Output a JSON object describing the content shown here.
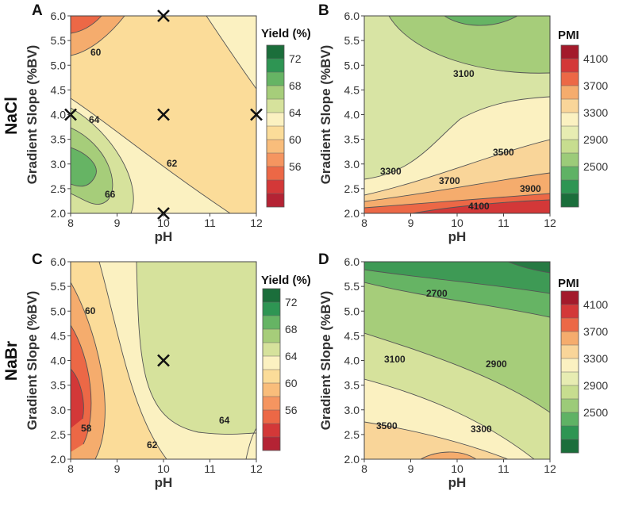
{
  "row_labels": [
    "NaCl",
    "NaBr"
  ],
  "chart_data": [
    {
      "panel": "A",
      "type": "heatmap",
      "subtype": "contour",
      "xlabel": "pH",
      "ylabel": "Gradient Slope (%BV)",
      "xlim": [
        8,
        12
      ],
      "ylim": [
        2.0,
        6.0
      ],
      "xticks": [
        "8",
        "9",
        "10",
        "11",
        "12"
      ],
      "yticks": [
        "2.0",
        "2.5",
        "3.0",
        "3.5",
        "4.0",
        "4.5",
        "5.0",
        "5.5",
        "6.0"
      ],
      "colorbar_title": "Yield (%)",
      "colorbar_ticks": [
        "72",
        "68",
        "64",
        "60",
        "56"
      ],
      "contour_labels": [
        "60",
        "64",
        "62",
        "66"
      ],
      "design_points": [
        {
          "x": 10,
          "y": 6
        },
        {
          "x": 8,
          "y": 4
        },
        {
          "x": 10,
          "y": 4
        },
        {
          "x": 12,
          "y": 4
        },
        {
          "x": 10,
          "y": 2
        }
      ]
    },
    {
      "panel": "B",
      "type": "heatmap",
      "subtype": "contour",
      "xlabel": "pH",
      "ylabel": "Gradient Slope (%BV)",
      "xlim": [
        8,
        12
      ],
      "ylim": [
        2.0,
        6.0
      ],
      "xticks": [
        "8",
        "9",
        "10",
        "11",
        "12"
      ],
      "yticks": [
        "2.0",
        "2.5",
        "3.0",
        "3.5",
        "4.0",
        "4.5",
        "5.0",
        "5.5",
        "6.0"
      ],
      "colorbar_title": "PMI",
      "colorbar_ticks": [
        "4100",
        "3700",
        "3300",
        "2900",
        "2500"
      ],
      "contour_labels": [
        "3100",
        "3500",
        "3300",
        "3700",
        "3900",
        "4100"
      ],
      "design_points": []
    },
    {
      "panel": "C",
      "type": "heatmap",
      "subtype": "contour",
      "xlabel": "pH",
      "ylabel": "Gradient Slope (%BV)",
      "xlim": [
        8,
        12
      ],
      "ylim": [
        2.0,
        6.0
      ],
      "xticks": [
        "8",
        "9",
        "10",
        "11",
        "12"
      ],
      "yticks": [
        "2.0",
        "2.5",
        "3.0",
        "3.5",
        "4.0",
        "4.5",
        "5.0",
        "5.5",
        "6.0"
      ],
      "colorbar_title": "Yield (%)",
      "colorbar_ticks": [
        "72",
        "68",
        "64",
        "60",
        "56"
      ],
      "contour_labels": [
        "60",
        "58",
        "62",
        "64"
      ],
      "design_points": [
        {
          "x": 10,
          "y": 4
        }
      ]
    },
    {
      "panel": "D",
      "type": "heatmap",
      "subtype": "contour",
      "xlabel": "pH",
      "ylabel": "Gradient Slope (%BV)",
      "xlim": [
        8,
        12
      ],
      "ylim": [
        2.0,
        6.0
      ],
      "xticks": [
        "8",
        "9",
        "10",
        "11",
        "12"
      ],
      "yticks": [
        "2.0",
        "2.5",
        "3.0",
        "3.5",
        "4.0",
        "4.5",
        "5.0",
        "5.5",
        "6.0"
      ],
      "colorbar_title": "PMI",
      "colorbar_ticks": [
        "4100",
        "3700",
        "3300",
        "2900",
        "2500"
      ],
      "contour_labels": [
        "2700",
        "3100",
        "2900",
        "3500",
        "3300"
      ],
      "design_points": []
    }
  ]
}
